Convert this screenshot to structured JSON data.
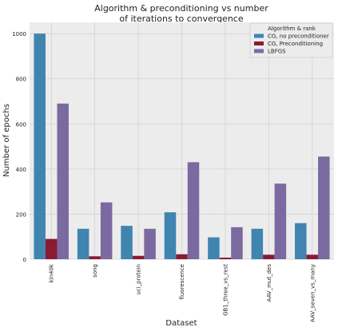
{
  "chart_data": {
    "type": "bar",
    "title_line1": "Algorithm & preconditioning vs number",
    "title_line2": "of iterations to convergence",
    "xlabel": "Dataset",
    "ylabel": "Number of epochs",
    "ylim": [
      0,
      1050
    ],
    "yticks": [
      0,
      200,
      400,
      600,
      800,
      1000
    ],
    "grid": true,
    "legend_title": "Algorithm & rank",
    "legend_position": "top-right",
    "categories": [
      "kin40k",
      "song",
      "uci_protein",
      "fluorescence",
      "GB1_three_vs_rest",
      "AAV_mut_des",
      "AAV_seven_vs_many"
    ],
    "series": [
      {
        "name": "CG, no preconditioner",
        "color": "#3f85b0",
        "values": [
          1000,
          135,
          148,
          208,
          97,
          135,
          160
        ]
      },
      {
        "name": "CG, Preconditioning",
        "color": "#8b1a35",
        "values": [
          90,
          13,
          15,
          22,
          7,
          20,
          20
        ]
      },
      {
        "name": "LBFGS",
        "color": "#7b6aa0",
        "values": [
          690,
          252,
          135,
          430,
          142,
          335,
          455
        ]
      }
    ]
  }
}
